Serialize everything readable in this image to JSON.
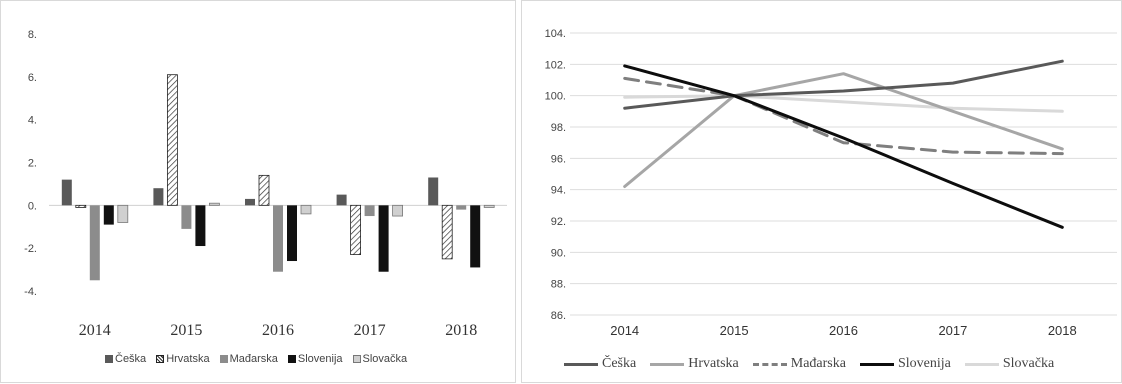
{
  "colors": {
    "Češka": "#595959",
    "Hrvatska": "#ffffff",
    "Mađarska": "#8c8c8c",
    "Slovenija": "#111111",
    "Slovačka": "#d0d0d0"
  },
  "line_colors": {
    "Češka": "#595959",
    "Hrvatska": "#a6a6a6",
    "Mađarska": "#7f7f7f",
    "Slovenija": "#0d0d0d",
    "Slovačka": "#d9d9d9"
  },
  "chart_data": [
    {
      "type": "bar",
      "categories": [
        "2014",
        "2015",
        "2016",
        "2017",
        "2018"
      ],
      "ylim": [
        -4,
        8
      ],
      "yticks": [
        -4,
        -2,
        0,
        2,
        4,
        6,
        8
      ],
      "ytick_labels": [
        "-4.",
        "-2.",
        "0.",
        "2.",
        "4.",
        "6.",
        "8."
      ],
      "grid": false,
      "legend_position": "bottom",
      "series": [
        {
          "name": "Češka",
          "values": [
            1.2,
            0.8,
            0.3,
            0.5,
            1.3
          ],
          "pattern": "solid"
        },
        {
          "name": "Hrvatska",
          "values": [
            -0.1,
            6.1,
            1.4,
            -2.3,
            -2.5
          ],
          "pattern": "hatched"
        },
        {
          "name": "Mađarska",
          "values": [
            -3.5,
            -1.1,
            -3.1,
            -0.5,
            -0.2
          ],
          "pattern": "solid"
        },
        {
          "name": "Slovenija",
          "values": [
            -0.9,
            -1.9,
            -2.6,
            -3.1,
            -2.9
          ],
          "pattern": "solid"
        },
        {
          "name": "Slovačka",
          "values": [
            -0.8,
            0.1,
            -0.4,
            -0.5,
            -0.1
          ],
          "pattern": "solid"
        }
      ]
    },
    {
      "type": "line",
      "x": [
        "2014",
        "2015",
        "2016",
        "2017",
        "2018"
      ],
      "ylim": [
        86,
        104
      ],
      "yticks": [
        86,
        88,
        90,
        92,
        94,
        96,
        98,
        100,
        102,
        104
      ],
      "ytick_labels": [
        "86.",
        "88.",
        "90.",
        "92.",
        "94.",
        "96.",
        "98.",
        "100.",
        "102.",
        "104."
      ],
      "grid": true,
      "legend_position": "bottom",
      "series": [
        {
          "name": "Češka",
          "values": [
            99.2,
            100.0,
            100.3,
            100.8,
            102.2
          ],
          "style": "solid"
        },
        {
          "name": "Hrvatska",
          "values": [
            94.2,
            100.0,
            101.4,
            99.0,
            96.6
          ],
          "style": "solid"
        },
        {
          "name": "Mađarska",
          "values": [
            101.1,
            100.0,
            97.0,
            96.4,
            96.3
          ],
          "style": "dashed"
        },
        {
          "name": "Slovenija",
          "values": [
            101.9,
            100.0,
            97.3,
            94.4,
            91.6
          ],
          "style": "solid"
        },
        {
          "name": "Slovačka",
          "values": [
            99.9,
            100.0,
            99.6,
            99.2,
            99.0
          ],
          "style": "solid"
        }
      ]
    }
  ]
}
